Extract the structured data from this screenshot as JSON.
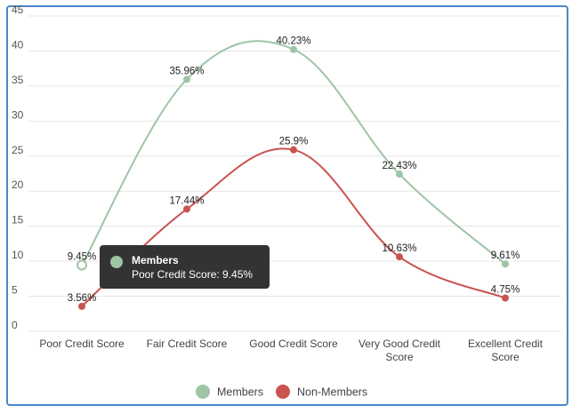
{
  "chart_data": {
    "type": "line",
    "categories": [
      [
        "Poor Credit Score"
      ],
      [
        "Fair Credit Score"
      ],
      [
        "Good Credit Score"
      ],
      [
        "Very Good Credit",
        "Score"
      ],
      [
        "Excellent Credit",
        "Score"
      ]
    ],
    "y_ticks": [
      0,
      5,
      10,
      15,
      20,
      25,
      30,
      35,
      40,
      45
    ],
    "ylim": [
      0,
      45
    ],
    "grid": true,
    "legend_position": "bottom-center",
    "series": [
      {
        "name": "Members",
        "color": "#9fc4a6",
        "values": [
          9.45,
          35.96,
          40.23,
          22.43,
          9.61
        ],
        "labels": [
          "9.45%",
          "35.96%",
          "40.23%",
          "22.43%",
          "9.61%"
        ]
      },
      {
        "name": "Non-Members",
        "color": "#c9534f",
        "values": [
          3.56,
          17.44,
          25.9,
          10.63,
          4.75
        ],
        "labels": [
          "3.56%",
          "17.44%",
          "25.9%",
          "10.63%",
          "4.75%"
        ]
      }
    ]
  },
  "tooltip": {
    "title": "Members",
    "body": "Poor Credit Score: 9.45%",
    "color": "#9fc4a6"
  }
}
